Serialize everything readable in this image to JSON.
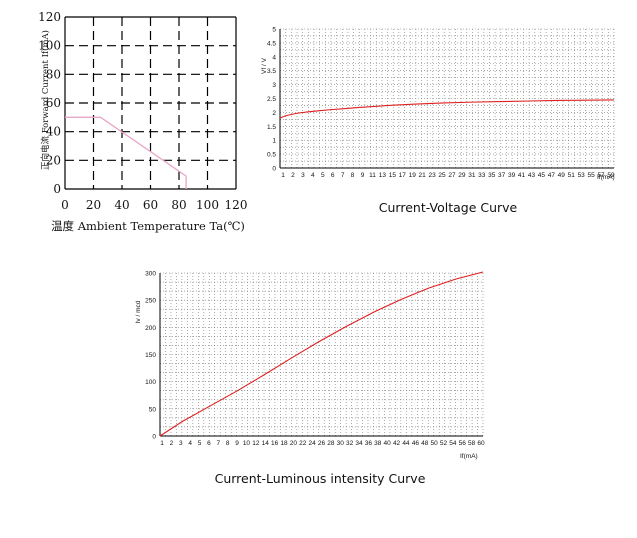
{
  "chart_data": [
    {
      "type": "line",
      "xlabel": "温度 Ambient Temperature Ta(℃)",
      "ylabel": "正向电流 Forward Current If(mA)",
      "xlim": [
        0,
        120
      ],
      "ylim": [
        0,
        120
      ],
      "x_ticks": [
        "0",
        "20",
        "40",
        "60",
        "80",
        "100",
        "120"
      ],
      "y_ticks": [
        "0",
        "20",
        "40",
        "60",
        "80",
        "100",
        "120"
      ],
      "grid": "dashed",
      "series": [
        {
          "x": [
            0,
            25,
            85,
            85
          ],
          "y": [
            50,
            50,
            9,
            0
          ]
        }
      ],
      "colors": {
        "line": "#e8a6c8",
        "grid": "#000000"
      }
    },
    {
      "type": "line",
      "title": "Current-Voltage Curve",
      "xlabel": "If(mA)",
      "ylabel": "Vf / V",
      "xlim": [
        1,
        60
      ],
      "ylim": [
        0,
        5
      ],
      "x_ticks": [
        "1",
        "2",
        "3",
        "4",
        "5",
        "6",
        "7",
        "8",
        "9",
        "11",
        "13",
        "15",
        "17",
        "19",
        "21",
        "23",
        "25",
        "27",
        "29",
        "31",
        "33",
        "35",
        "37",
        "39",
        "41",
        "43",
        "45",
        "47",
        "49",
        "51",
        "53",
        "55",
        "57",
        "59"
      ],
      "y_ticks": [
        "0",
        "0.5",
        "1",
        "1.5",
        "2",
        "2.5",
        "3",
        "3.5",
        "4",
        "4.5",
        "5"
      ],
      "grid": "dotted",
      "series": [
        {
          "x": [
            1,
            2,
            4,
            6,
            8,
            10,
            12,
            15,
            18,
            21,
            25,
            30,
            35,
            40,
            45,
            50,
            55,
            60
          ],
          "y": [
            1.8,
            1.88,
            1.97,
            2.02,
            2.06,
            2.1,
            2.13,
            2.18,
            2.22,
            2.26,
            2.3,
            2.34,
            2.37,
            2.39,
            2.41,
            2.43,
            2.44,
            2.45
          ]
        }
      ],
      "colors": {
        "line": "#e02020",
        "grid": "#777777"
      }
    },
    {
      "type": "line",
      "title": "Current-Luminous intensity Curve",
      "xlabel": "If(mA)",
      "ylabel": "Iv / mcd",
      "xlim": [
        1,
        60
      ],
      "ylim": [
        0,
        320
      ],
      "x_ticks": [
        "1",
        "2",
        "3",
        "4",
        "5",
        "6",
        "7",
        "8",
        "9",
        "10",
        "12",
        "14",
        "16",
        "18",
        "20",
        "22",
        "24",
        "26",
        "28",
        "30",
        "32",
        "34",
        "36",
        "38",
        "40",
        "42",
        "44",
        "46",
        "48",
        "50",
        "52",
        "54",
        "56",
        "58",
        "60"
      ],
      "y_ticks": [
        "0",
        "50",
        "100",
        "150",
        "200",
        "250",
        "300"
      ],
      "grid": "dotted",
      "series": [
        {
          "x": [
            1,
            5,
            10,
            15,
            20,
            25,
            30,
            35,
            40,
            45,
            50,
            55,
            60
          ],
          "y": [
            0,
            28,
            58,
            88,
            120,
            153,
            185,
            215,
            243,
            268,
            290,
            308,
            322
          ]
        }
      ],
      "colors": {
        "line": "#e02020",
        "grid": "#777777"
      }
    }
  ]
}
